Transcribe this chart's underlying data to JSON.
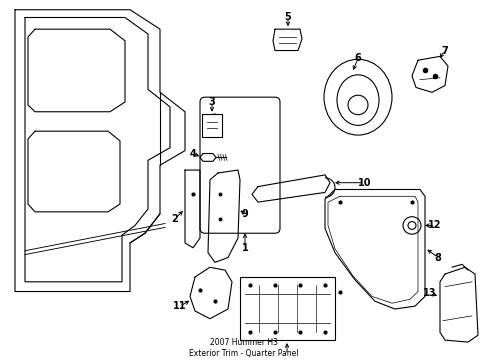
{
  "title": "2007 Hummer H3\nExterior Trim - Quarter Panel",
  "background_color": "#ffffff",
  "line_color": "#000000",
  "fig_width": 4.89,
  "fig_height": 3.6,
  "dpi": 100,
  "lw": 0.8,
  "font_size": 7.0
}
